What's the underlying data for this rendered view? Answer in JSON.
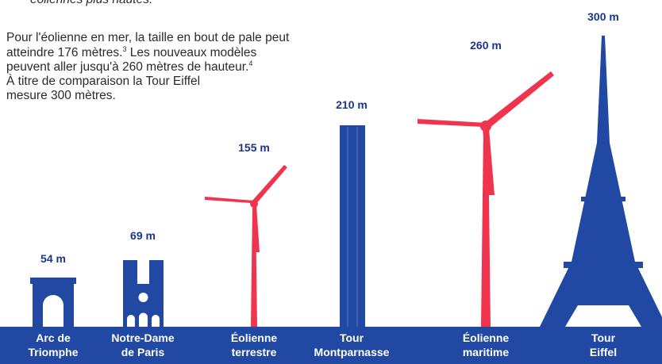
{
  "intro_fragment": "éoliennes plus hautes.",
  "paragraph": [
    "Pour l'éolienne en mer, la taille en bout de pale peut",
    "atteindre 176 mètres.",
    "3",
    " Les nouveaux modèles",
    "peuvent aller jusqu'à 260 mètres de hauteur.",
    "4",
    "À titre de comparaison la Tour Eiffel",
    "mesure 300 mètres."
  ],
  "items": [
    {
      "height": "54 m",
      "label": [
        "Arc de",
        "Triomphe"
      ]
    },
    {
      "height": "69 m",
      "label": [
        "Notre-Dame",
        "de Paris"
      ]
    },
    {
      "height": "155 m",
      "label": [
        "Éolienne",
        "terrestre"
      ]
    },
    {
      "height": "210 m",
      "label": [
        "Tour",
        "Montparnasse"
      ]
    },
    {
      "height": "260 m",
      "label": [
        "Éolienne",
        "maritime"
      ]
    },
    {
      "height": "300 m",
      "label": [
        "Tour",
        "Eiffel"
      ]
    }
  ]
}
